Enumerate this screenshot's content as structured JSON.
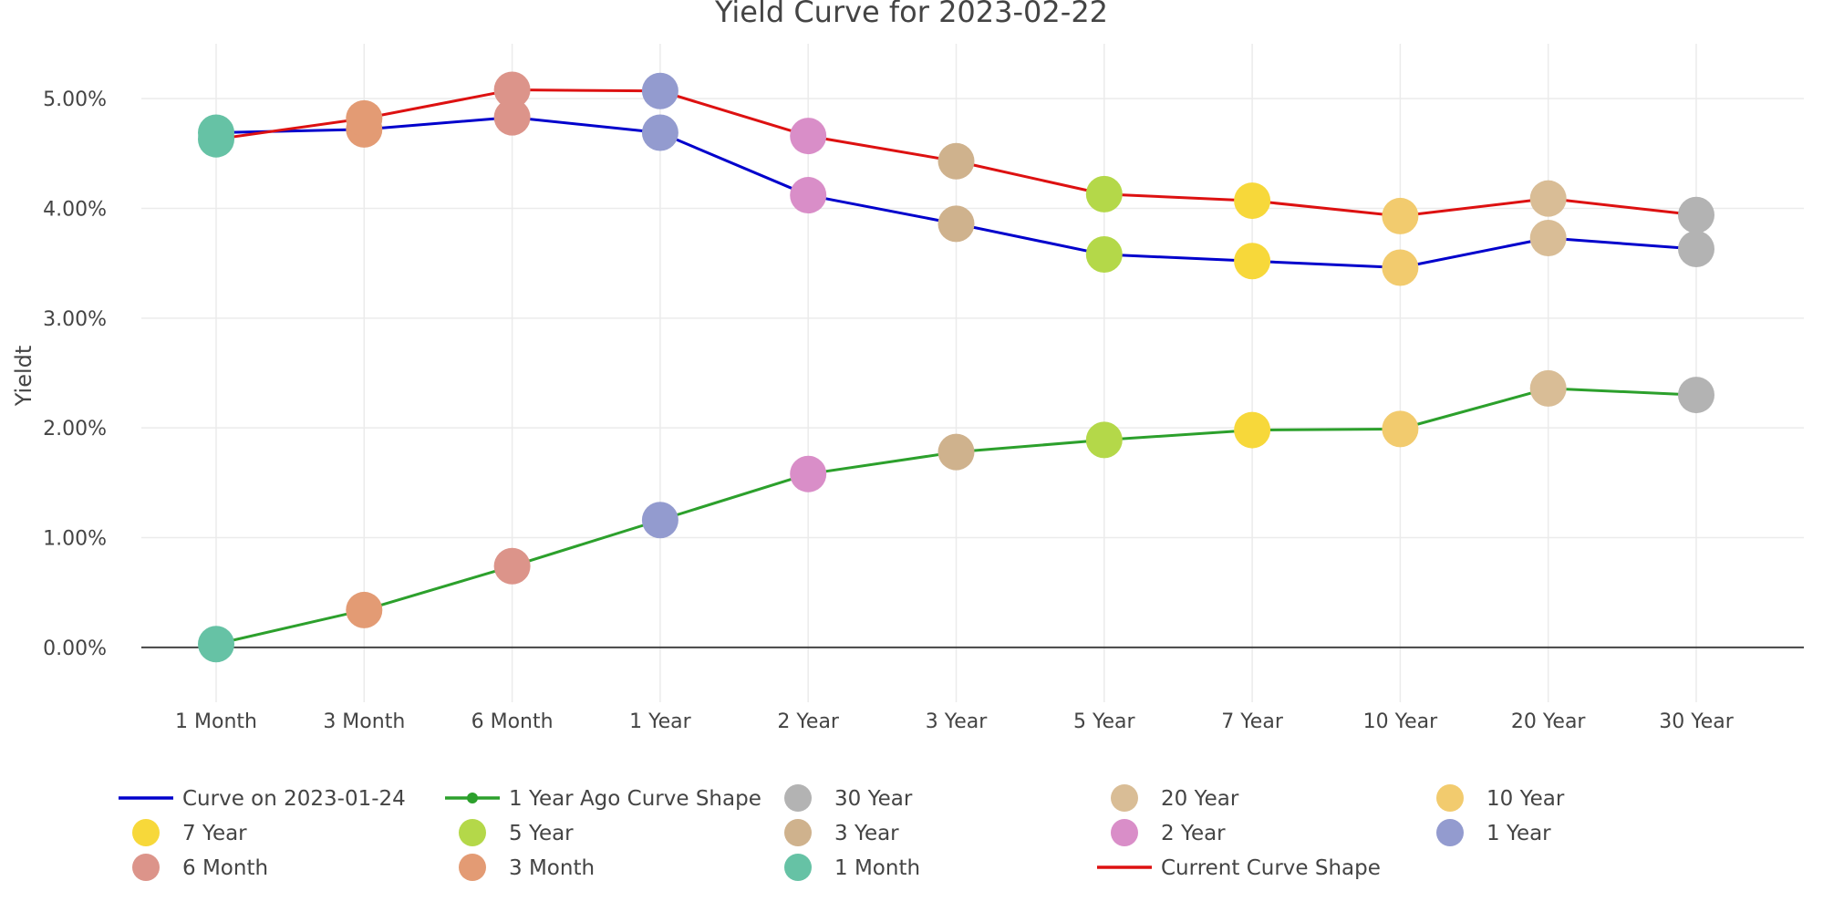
{
  "chart_data": {
    "type": "line",
    "title": "Yield Curve for 2023-02-22",
    "xlabel": "",
    "ylabel": "Yieldt",
    "categories": [
      "1 Month",
      "3 Month",
      "6 Month",
      "1 Year",
      "2 Year",
      "3 Year",
      "5 Year",
      "7 Year",
      "10 Year",
      "20 Year",
      "30 Year"
    ],
    "ylim": [
      -0.5,
      5.5
    ],
    "yticks": [
      0,
      1,
      2,
      3,
      4,
      5
    ],
    "ytick_labels": [
      "0.00%",
      "1.00%",
      "2.00%",
      "3.00%",
      "4.00%",
      "5.00%"
    ],
    "grid": true,
    "zero_line": true,
    "series": [
      {
        "name": "Curve on 2023-01-24",
        "color": "#0000cc",
        "mode": "lines",
        "values": [
          4.69,
          4.72,
          4.83,
          4.69,
          4.12,
          3.86,
          3.58,
          3.52,
          3.46,
          3.73,
          3.63
        ]
      },
      {
        "name": "1 Year Ago Curve Shape",
        "color": "#2ca02c",
        "mode": "lines+markers",
        "values": [
          0.03,
          0.34,
          0.74,
          1.16,
          1.58,
          1.78,
          1.89,
          1.98,
          1.99,
          2.36,
          2.3
        ]
      },
      {
        "name": "Current Curve Shape",
        "color": "#dd1111",
        "mode": "lines",
        "values": [
          4.63,
          4.82,
          5.08,
          5.07,
          4.66,
          4.43,
          4.13,
          4.07,
          3.93,
          4.09,
          3.94
        ]
      }
    ],
    "maturity_colors": {
      "1 Month": "#66c2a5",
      "3 Month": "#e39b74",
      "6 Month": "#dc948a",
      "1 Year": "#939bcf",
      "2 Year": "#d98ec8",
      "3 Year": "#cfb28d",
      "5 Year": "#b4d849",
      "7 Year": "#f7d83a",
      "10 Year": "#f2cb6e",
      "20 Year": "#d9bd96",
      "30 Year": "#b3b3b3"
    },
    "legend": [
      {
        "label": "Curve on 2023-01-24",
        "kind": "line",
        "color": "#0000cc"
      },
      {
        "label": "1 Year Ago Curve Shape",
        "kind": "line-marker",
        "color": "#2ca02c"
      },
      {
        "label": "30 Year",
        "kind": "marker",
        "color": "#b3b3b3"
      },
      {
        "label": "20 Year",
        "kind": "marker",
        "color": "#d9bd96"
      },
      {
        "label": "10 Year",
        "kind": "marker",
        "color": "#f2cb6e"
      },
      {
        "label": "7 Year",
        "kind": "marker",
        "color": "#f7d83a"
      },
      {
        "label": "5 Year",
        "kind": "marker",
        "color": "#b4d849"
      },
      {
        "label": "3 Year",
        "kind": "marker",
        "color": "#cfb28d"
      },
      {
        "label": "2 Year",
        "kind": "marker",
        "color": "#d98ec8"
      },
      {
        "label": "1 Year",
        "kind": "marker",
        "color": "#939bcf"
      },
      {
        "label": "6 Month",
        "kind": "marker",
        "color": "#dc948a"
      },
      {
        "label": "3 Month",
        "kind": "marker",
        "color": "#e39b74"
      },
      {
        "label": "1 Month",
        "kind": "marker",
        "color": "#66c2a5"
      },
      {
        "label": "Current Curve Shape",
        "kind": "line",
        "color": "#dd1111"
      }
    ],
    "legend_position": "bottom"
  }
}
